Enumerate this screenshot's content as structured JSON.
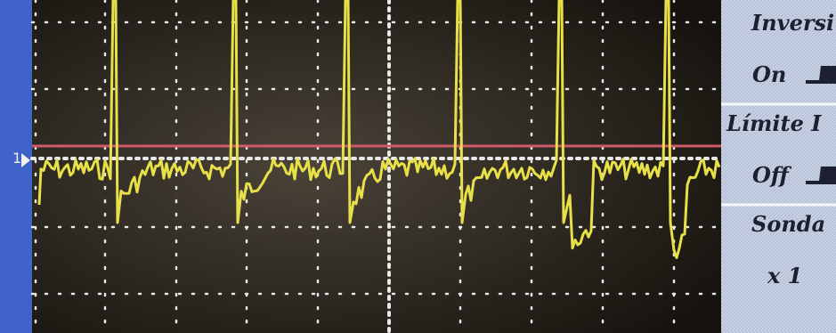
{
  "channel_marker": "1",
  "menu": {
    "items": [
      {
        "label": "Inversi",
        "value": "On"
      },
      {
        "label": "Límite I",
        "value": "Off"
      },
      {
        "label": "Sonda",
        "value": "x 1"
      }
    ]
  }
}
